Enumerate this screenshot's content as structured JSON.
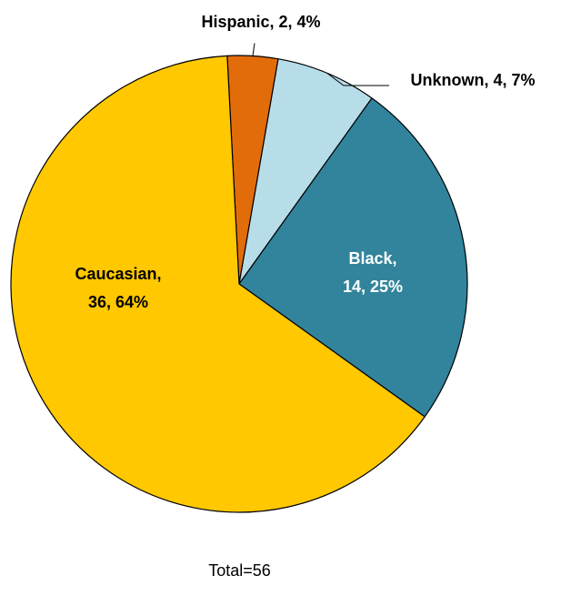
{
  "chart_data": {
    "type": "pie",
    "start_angle_deg": 357,
    "direction": "clockwise",
    "slices": [
      {
        "name": "Hispanic",
        "value": 2,
        "percent": "4%",
        "color": "#E36C0A",
        "label_lines": [
          "Hispanic, 2, 4%"
        ],
        "label_position": "outside",
        "label_color": "#000000"
      },
      {
        "name": "Unknown",
        "value": 4,
        "percent": "7%",
        "color": "#B7DDE8",
        "label_lines": [
          "Unknown, 4, 7%"
        ],
        "label_position": "outside",
        "label_color": "#000000"
      },
      {
        "name": "Black",
        "value": 14,
        "percent": "25%",
        "color": "#31849B",
        "label_lines": [
          "Black,",
          "14, 25%"
        ],
        "label_position": "inside",
        "label_color": "#FFFFFF"
      },
      {
        "name": "Caucasian",
        "value": 36,
        "percent": "64%",
        "color": "#FFC800",
        "label_lines": [
          "Caucasian,",
          "36, 64%"
        ],
        "label_position": "inside",
        "label_color": "#000000"
      }
    ],
    "total": 56,
    "footnote": "Total=56"
  }
}
